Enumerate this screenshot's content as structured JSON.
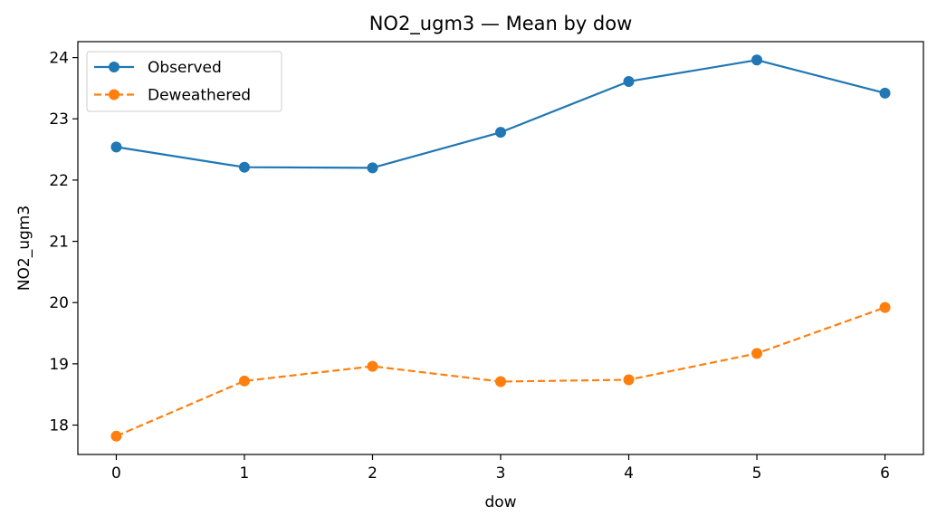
{
  "chart_data": {
    "type": "line",
    "title": "NO2_ugm3 — Mean by dow",
    "xlabel": "dow",
    "ylabel": "NO2_ugm3",
    "x": [
      0,
      1,
      2,
      3,
      4,
      5,
      6
    ],
    "x_ticks": [
      "0",
      "1",
      "2",
      "3",
      "4",
      "5",
      "6"
    ],
    "y_ticks": [
      "18",
      "19",
      "20",
      "21",
      "22",
      "23",
      "24"
    ],
    "xlim": [
      -0.3,
      6.3
    ],
    "ylim": [
      17.52,
      24.26
    ],
    "grid": false,
    "legend_position": "upper-left",
    "series": [
      {
        "name": "Observed",
        "values": [
          22.54,
          22.21,
          22.2,
          22.78,
          23.61,
          23.96,
          23.42
        ],
        "color": "#1f77b4",
        "line_style": "solid",
        "marker": "circle"
      },
      {
        "name": "Deweathered",
        "values": [
          17.82,
          18.72,
          18.96,
          18.71,
          18.74,
          19.17,
          19.92
        ],
        "color": "#ff7f0e",
        "line_style": "dashed",
        "marker": "circle"
      }
    ]
  }
}
